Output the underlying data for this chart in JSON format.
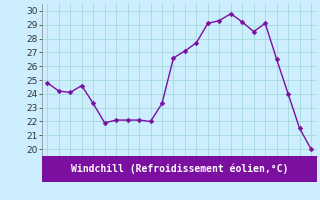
{
  "x": [
    0,
    1,
    2,
    3,
    4,
    5,
    6,
    7,
    8,
    9,
    10,
    11,
    12,
    13,
    14,
    15,
    16,
    17,
    18,
    19,
    20,
    21,
    22,
    23
  ],
  "y": [
    24.8,
    24.2,
    24.1,
    24.6,
    23.3,
    21.9,
    22.1,
    22.1,
    22.1,
    22.0,
    23.3,
    26.6,
    27.1,
    27.7,
    29.1,
    29.3,
    29.8,
    29.2,
    28.5,
    29.1,
    26.5,
    24.0,
    21.5,
    20.0
  ],
  "line_color": "#7b0fa0",
  "marker": "D",
  "marker_size": 2.5,
  "line_width": 1.0,
  "bg_color": "#cceeff",
  "grid_color": "#aadddd",
  "xlabel": "Windchill (Refroidissement éolien,°C)",
  "xlabel_color": "#ffffff",
  "xlabel_bg": "#7b0fa0",
  "ylabel_ticks": [
    20,
    21,
    22,
    23,
    24,
    25,
    26,
    27,
    28,
    29,
    30
  ],
  "xlim": [
    -0.5,
    23.5
  ],
  "ylim": [
    19.5,
    30.5
  ],
  "tick_fontsize": 6.5,
  "xlabel_fontsize": 7.0
}
